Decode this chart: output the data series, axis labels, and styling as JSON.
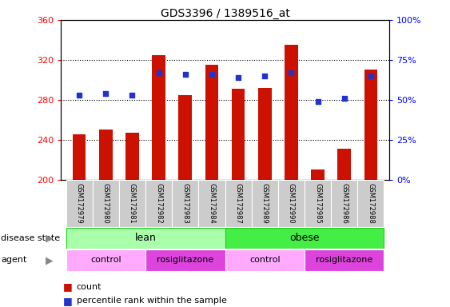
{
  "title": "GDS3396 / 1389516_at",
  "samples": [
    "GSM172979",
    "GSM172980",
    "GSM172981",
    "GSM172982",
    "GSM172983",
    "GSM172984",
    "GSM172987",
    "GSM172989",
    "GSM172990",
    "GSM172985",
    "GSM172986",
    "GSM172988"
  ],
  "counts": [
    245,
    250,
    247,
    325,
    285,
    315,
    291,
    292,
    335,
    210,
    231,
    310
  ],
  "percentiles": [
    53,
    54,
    53,
    67,
    66,
    66,
    64,
    65,
    67,
    49,
    51,
    65
  ],
  "ylim_left": [
    200,
    360
  ],
  "ylim_right": [
    0,
    100
  ],
  "yticks_left": [
    200,
    240,
    280,
    320,
    360
  ],
  "yticks_right": [
    0,
    25,
    50,
    75,
    100
  ],
  "bar_color": "#cc1100",
  "dot_color": "#2233cc",
  "disease_state_color_lean": "#aaffaa",
  "disease_state_color_obese": "#44ee44",
  "disease_state_border": "#22cc22",
  "agent_color_control": "#ffaaff",
  "agent_color_rosi": "#dd44dd",
  "tick_bg": "#cccccc",
  "plot_bg": "#ffffff"
}
